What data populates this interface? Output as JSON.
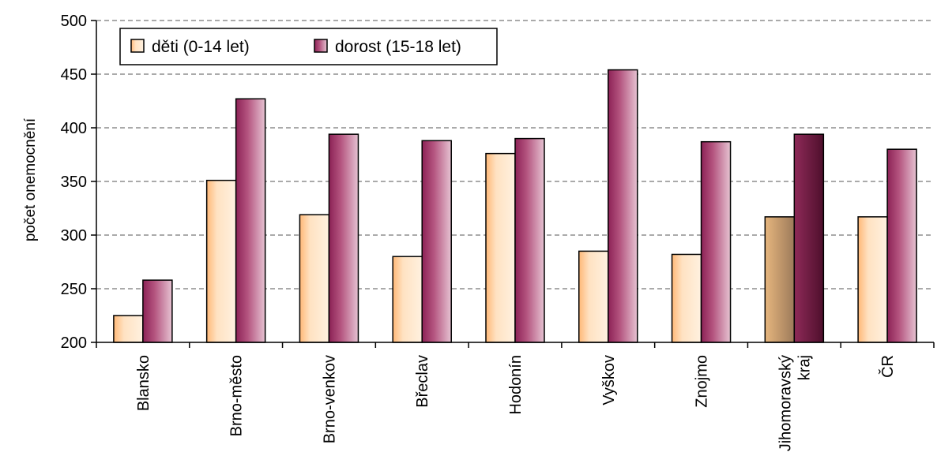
{
  "chart_data": {
    "type": "bar",
    "ylabel": "počet onemocnění",
    "ylim": [
      200,
      500
    ],
    "yticks": [
      200,
      250,
      300,
      350,
      400,
      450,
      500
    ],
    "grid": "horizontal dashed",
    "legend_position": "top-left",
    "categories": [
      [
        "Blansko"
      ],
      [
        "Brno-město"
      ],
      [
        "Brno-venkov"
      ],
      [
        "Břeclav"
      ],
      [
        "Hodonín"
      ],
      [
        "Vyškov"
      ],
      [
        "Znojmo"
      ],
      [
        "Jihomoravský",
        "kraj"
      ],
      [
        "ČR"
      ]
    ],
    "highlight_category_index": 7,
    "series": [
      {
        "name": "děti (0-14 let)",
        "color": "#ffd5a8",
        "highlight_color": "#c69a6a",
        "values": [
          225,
          351,
          319,
          280,
          376,
          285,
          282,
          317,
          317
        ]
      },
      {
        "name": "dorost (15-18 let)",
        "color": "#a33a6a",
        "highlight_color": "#7a1e46",
        "values": [
          258,
          427,
          394,
          388,
          390,
          454,
          387,
          394,
          380
        ]
      }
    ]
  }
}
